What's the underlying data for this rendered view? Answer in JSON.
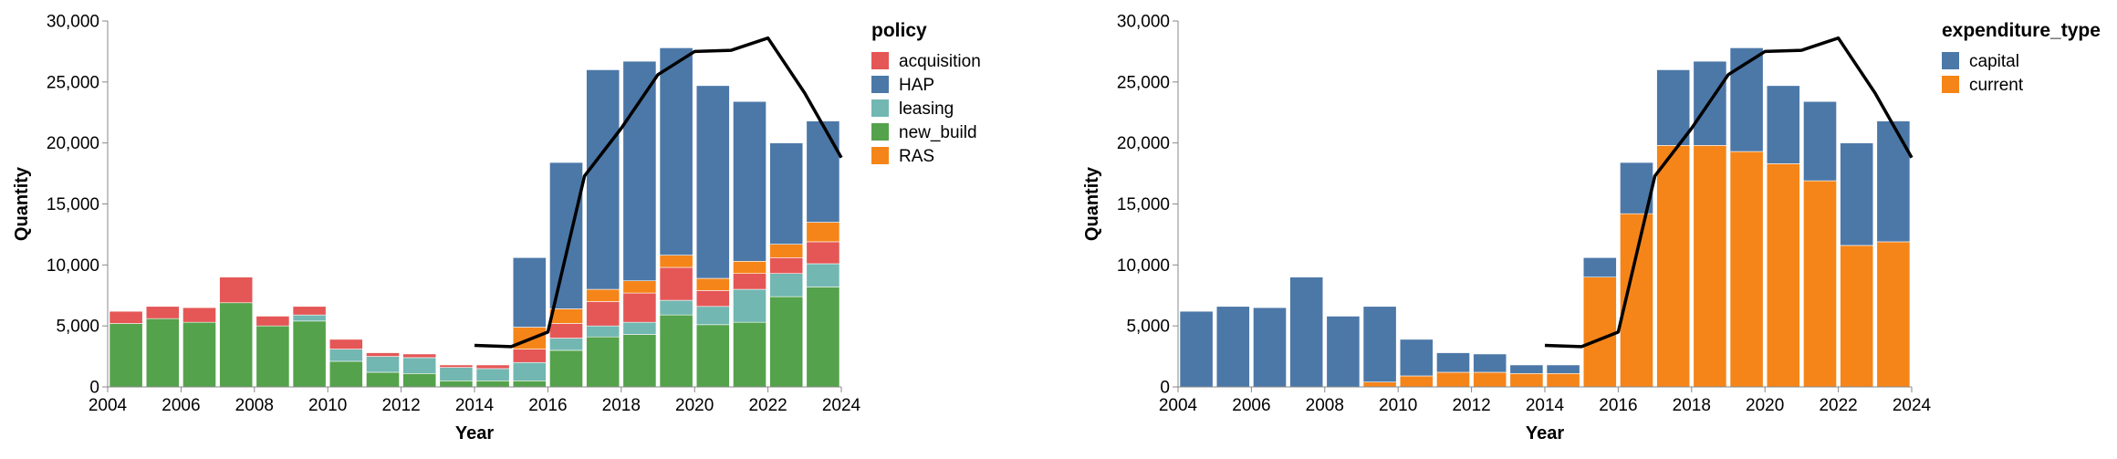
{
  "chart_data": [
    {
      "type": "bar",
      "stacked": true,
      "xlabel": "Year",
      "ylabel": "Quantity",
      "ylim": [
        0,
        30000
      ],
      "y_ticks": [
        0,
        5000,
        10000,
        15000,
        20000,
        25000,
        30000
      ],
      "y_tick_labels": [
        "0",
        "5,000",
        "10,000",
        "15,000",
        "20,000",
        "25,000",
        "30,000"
      ],
      "x_tick_labels": [
        "2004",
        "2006",
        "2008",
        "2010",
        "2012",
        "2014",
        "2016",
        "2018",
        "2020",
        "2022",
        "2024"
      ],
      "x": [
        2004,
        2005,
        2006,
        2007,
        2008,
        2009,
        2010,
        2011,
        2012,
        2013,
        2014,
        2015,
        2016,
        2017,
        2018,
        2019,
        2020,
        2021,
        2022,
        2023
      ],
      "legend_title": "policy",
      "legend_position": "right",
      "series": [
        {
          "name": "new_build",
          "color": "#54a24b",
          "values": [
            5200,
            5600,
            5300,
            6900,
            5000,
            5400,
            2100,
            1200,
            1100,
            500,
            500,
            500,
            3000,
            4100,
            4300,
            5900,
            5100,
            5300,
            7400,
            8200
          ]
        },
        {
          "name": "leasing",
          "color": "#72b7b2",
          "values": [
            0,
            0,
            0,
            0,
            0,
            500,
            1000,
            1300,
            1300,
            1100,
            1000,
            1500,
            1000,
            900,
            1000,
            1200,
            1500,
            2700,
            1900,
            1900
          ]
        },
        {
          "name": "acquisition",
          "color": "#e45756",
          "values": [
            1000,
            1000,
            1200,
            2100,
            800,
            700,
            800,
            300,
            300,
            200,
            300,
            1100,
            1200,
            2000,
            2400,
            2700,
            1300,
            1300,
            1300,
            1800
          ]
        },
        {
          "name": "RAS",
          "color": "#f58518",
          "values": [
            0,
            0,
            0,
            0,
            0,
            0,
            0,
            0,
            0,
            0,
            0,
            1800,
            1200,
            1000,
            1000,
            1000,
            1000,
            1000,
            1100,
            1600
          ]
        },
        {
          "name": "HAP",
          "color": "#4c78a8",
          "values": [
            0,
            0,
            0,
            0,
            0,
            0,
            0,
            0,
            0,
            0,
            0,
            5700,
            12000,
            18000,
            18000,
            17000,
            15800,
            13100,
            8300,
            8300
          ]
        }
      ],
      "line": {
        "color": "#000000",
        "x": [
          2013.5,
          2014.5,
          2015.5,
          2016.5,
          2017.5,
          2018.5,
          2019.5,
          2020.5,
          2021.5,
          2022.5,
          2023.5
        ],
        "y": [
          3400,
          3300,
          4500,
          17300,
          21200,
          25600,
          27500,
          27600,
          28600,
          24100,
          18800
        ]
      }
    },
    {
      "type": "bar",
      "stacked": true,
      "xlabel": "Year",
      "ylabel": "Quantity",
      "ylim": [
        0,
        30000
      ],
      "y_ticks": [
        0,
        5000,
        10000,
        15000,
        20000,
        25000,
        30000
      ],
      "y_tick_labels": [
        "0",
        "5,000",
        "10,000",
        "15,000",
        "20,000",
        "25,000",
        "30,000"
      ],
      "x_tick_labels": [
        "2004",
        "2006",
        "2008",
        "2010",
        "2012",
        "2014",
        "2016",
        "2018",
        "2020",
        "2022",
        "2024"
      ],
      "x": [
        2004,
        2005,
        2006,
        2007,
        2008,
        2009,
        2010,
        2011,
        2012,
        2013,
        2014,
        2015,
        2016,
        2017,
        2018,
        2019,
        2020,
        2021,
        2022,
        2023
      ],
      "legend_title": "expenditure_type",
      "legend_position": "right",
      "series": [
        {
          "name": "current",
          "color": "#f58518",
          "values": [
            0,
            0,
            0,
            0,
            0,
            400,
            900,
            1200,
            1200,
            1100,
            1100,
            9000,
            14200,
            19800,
            19800,
            19300,
            18300,
            16900,
            11600,
            11900
          ]
        },
        {
          "name": "capital",
          "color": "#4c78a8",
          "values": [
            6200,
            6600,
            6500,
            9000,
            5800,
            6200,
            3000,
            1600,
            1500,
            700,
            700,
            1600,
            4200,
            6200,
            6900,
            8500,
            6400,
            6500,
            8400,
            9900
          ]
        }
      ],
      "line": {
        "color": "#000000",
        "x": [
          2013.5,
          2014.5,
          2015.5,
          2016.5,
          2017.5,
          2018.5,
          2019.5,
          2020.5,
          2021.5,
          2022.5,
          2023.5
        ],
        "y": [
          3400,
          3300,
          4500,
          17300,
          21200,
          25600,
          27500,
          27600,
          28600,
          24100,
          18800
        ]
      }
    }
  ]
}
